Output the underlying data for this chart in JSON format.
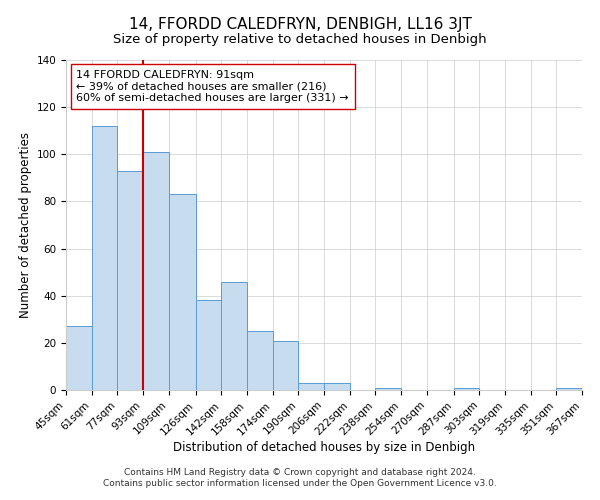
{
  "title": "14, FFORDD CALEDFRYN, DENBIGH, LL16 3JT",
  "subtitle": "Size of property relative to detached houses in Denbigh",
  "xlabel": "Distribution of detached houses by size in Denbigh",
  "ylabel": "Number of detached properties",
  "footer_line1": "Contains HM Land Registry data © Crown copyright and database right 2024.",
  "footer_line2": "Contains public sector information licensed under the Open Government Licence v3.0.",
  "annotation_line1": "14 FFORDD CALEDFRYN: 91sqm",
  "annotation_line2": "← 39% of detached houses are smaller (216)",
  "annotation_line3": "60% of semi-detached houses are larger (331) →",
  "bar_color": "#c8dcf0",
  "bar_edge_color": "#5b9bd5",
  "vline_x": 93,
  "vline_color": "#cc0000",
  "bin_edges": [
    45,
    61,
    77,
    93,
    109,
    126,
    142,
    158,
    174,
    190,
    206,
    222,
    238,
    254,
    270,
    287,
    303,
    319,
    335,
    351,
    367
  ],
  "bin_labels": [
    "45sqm",
    "61sqm",
    "77sqm",
    "93sqm",
    "109sqm",
    "126sqm",
    "142sqm",
    "158sqm",
    "174sqm",
    "190sqm",
    "206sqm",
    "222sqm",
    "238sqm",
    "254sqm",
    "270sqm",
    "287sqm",
    "303sqm",
    "319sqm",
    "335sqm",
    "351sqm",
    "367sqm"
  ],
  "counts": [
    27,
    112,
    93,
    101,
    83,
    38,
    46,
    25,
    21,
    3,
    3,
    0,
    1,
    0,
    0,
    1,
    0,
    0,
    0,
    1
  ],
  "ylim": [
    0,
    140
  ],
  "yticks": [
    0,
    20,
    40,
    60,
    80,
    100,
    120,
    140
  ],
  "background_color": "#ffffff",
  "grid_color": "#cccccc",
  "annotation_box_color": "#ffffff",
  "annotation_box_edge": "#cc0000",
  "title_fontsize": 11,
  "subtitle_fontsize": 9.5,
  "axis_label_fontsize": 8.5,
  "tick_label_fontsize": 7.5,
  "annotation_fontsize": 8,
  "footer_fontsize": 6.5
}
